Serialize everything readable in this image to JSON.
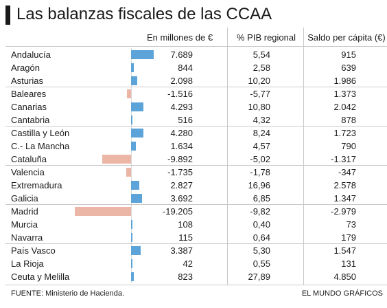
{
  "title": "Las balanzas fiscales de las CCAA",
  "columns": {
    "millones": "En millones de €",
    "pib": "% PIB regional",
    "saldo": "Saldo per cápita (€)"
  },
  "footer": {
    "source": "FUENTE: Ministerio de Hacienda.",
    "credit": "EL MUNDO GRÁFICOS"
  },
  "colors": {
    "positive": "#5ba3d9",
    "negative": "#ebb6a6"
  },
  "chart_data": {
    "type": "bar",
    "categories": [
      "Andalucía",
      "Aragón",
      "Asturias",
      "Baleares",
      "Canarias",
      "Cantabria",
      "Castilla y León",
      "C.- La Mancha",
      "Cataluña",
      "Valencia",
      "Extremadura",
      "Galicia",
      "Madrid",
      "Murcia",
      "Navarra",
      "País Vasco",
      "La Rioja",
      "Ceuta y Melilla"
    ],
    "values": [
      7689,
      844,
      2098,
      -1516,
      4293,
      516,
      4280,
      1634,
      -9892,
      -1735,
      2827,
      3692,
      -19205,
      108,
      115,
      3387,
      42,
      823
    ],
    "rows": [
      {
        "name": "Andalucía",
        "millones": "7.689",
        "pib": "5,54",
        "saldo": "915",
        "group_start": false
      },
      {
        "name": "Aragón",
        "millones": "844",
        "pib": "2,58",
        "saldo": "639",
        "group_start": false
      },
      {
        "name": "Asturias",
        "millones": "2.098",
        "pib": "10,20",
        "saldo": "1.986",
        "group_start": false
      },
      {
        "name": "Baleares",
        "millones": "-1.516",
        "pib": "-5,77",
        "saldo": "1.373",
        "group_start": true
      },
      {
        "name": "Canarias",
        "millones": "4.293",
        "pib": "10,80",
        "saldo": "2.042",
        "group_start": false
      },
      {
        "name": "Cantabria",
        "millones": "516",
        "pib": "4,32",
        "saldo": "878",
        "group_start": false
      },
      {
        "name": "Castilla y León",
        "millones": "4.280",
        "pib": "8,24",
        "saldo": "1.723",
        "group_start": true
      },
      {
        "name": "C.- La Mancha",
        "millones": "1.634",
        "pib": "4,57",
        "saldo": "790",
        "group_start": false
      },
      {
        "name": "Cataluña",
        "millones": "-9.892",
        "pib": "-5,02",
        "saldo": "-1.317",
        "group_start": false
      },
      {
        "name": "Valencia",
        "millones": "-1.735",
        "pib": "-1,78",
        "saldo": "-347",
        "group_start": true
      },
      {
        "name": "Extremadura",
        "millones": "2.827",
        "pib": "16,96",
        "saldo": "2.578",
        "group_start": false
      },
      {
        "name": "Galicia",
        "millones": "3.692",
        "pib": "6,85",
        "saldo": "1.347",
        "group_start": false
      },
      {
        "name": "Madrid",
        "millones": "-19.205",
        "pib": "-9,82",
        "saldo": "-2.979",
        "group_start": true
      },
      {
        "name": "Murcia",
        "millones": "108",
        "pib": "0,40",
        "saldo": "73",
        "group_start": false
      },
      {
        "name": "Navarra",
        "millones": "115",
        "pib": "0,64",
        "saldo": "179",
        "group_start": false
      },
      {
        "name": "País Vasco",
        "millones": "3.387",
        "pib": "5,30",
        "saldo": "1.547",
        "group_start": true
      },
      {
        "name": "La Rioja",
        "millones": "42",
        "pib": "0,55",
        "saldo": "131",
        "group_start": false
      },
      {
        "name": "Ceuta y Melilla",
        "millones": "823",
        "pib": "27,89",
        "saldo": "4.850",
        "group_start": false
      }
    ]
  }
}
